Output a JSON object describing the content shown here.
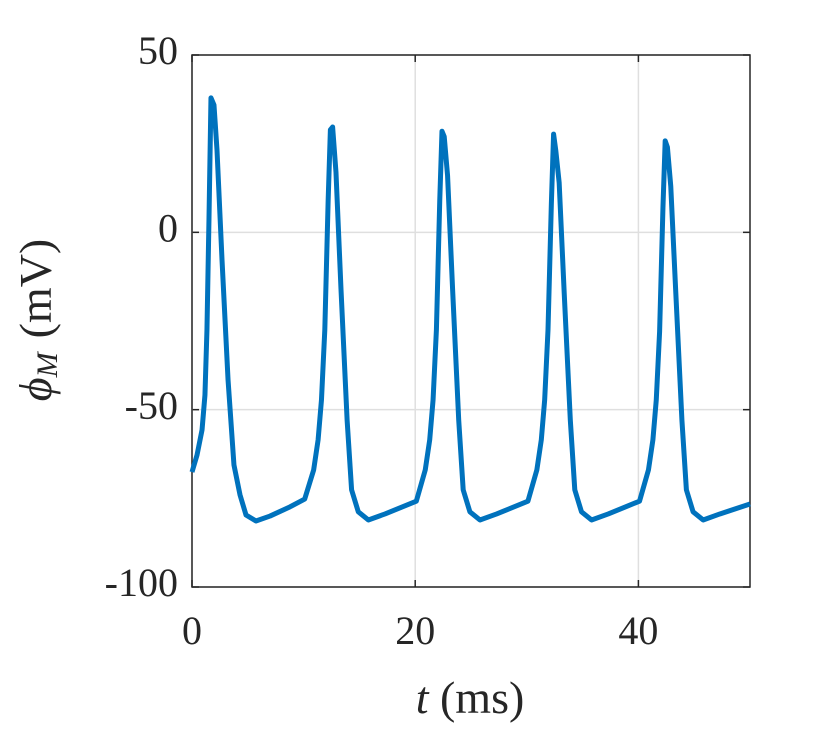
{
  "chart_data": {
    "type": "line",
    "xlabel": {
      "symbol": "t",
      "unit": "(ms)"
    },
    "ylabel": {
      "symbol": "ϕ",
      "subscript": "M",
      "unit": "(mV)"
    },
    "xlim": [
      0,
      50
    ],
    "xticks": [
      0,
      20,
      40
    ],
    "ylim": [
      -100,
      50
    ],
    "yticks": [
      -100,
      -50,
      0,
      50
    ],
    "grid": true,
    "series": [
      {
        "color": "#0072bd",
        "x": [
          0,
          0.45,
          0.9,
          1.16,
          1.34,
          1.52,
          1.7,
          1.97,
          2.24,
          2.69,
          3.23,
          3.76,
          4.3,
          4.84,
          5.73,
          6.99,
          8.78,
          10.1,
          10.9,
          11.3,
          11.6,
          11.9,
          12.2,
          12.4,
          12.6,
          12.9,
          13.35,
          13.9,
          14.3,
          14.9,
          15.8,
          17.3,
          20.1,
          20.9,
          21.3,
          21.6,
          21.9,
          22.2,
          22.4,
          22.6,
          22.9,
          23.35,
          23.9,
          24.3,
          24.9,
          25.8,
          27.3,
          30.1,
          30.9,
          31.3,
          31.6,
          31.9,
          32.2,
          32.4,
          32.6,
          32.9,
          33.35,
          33.9,
          34.3,
          34.9,
          35.8,
          37.3,
          40.1,
          40.9,
          41.3,
          41.6,
          41.9,
          42.2,
          42.4,
          42.6,
          42.9,
          43.35,
          43.9,
          44.3,
          44.9,
          45.8,
          47.3,
          50
        ],
        "values": [
          -67.6,
          -62.8,
          -55.7,
          -45.9,
          -27.5,
          3.5,
          37.9,
          35.9,
          23.2,
          -7.8,
          -41.6,
          -65.6,
          -74,
          -79.7,
          -81.4,
          -80,
          -77.4,
          -75.2,
          -67,
          -58.5,
          -47.3,
          -27.5,
          9,
          28.9,
          29.7,
          17,
          -16,
          -53,
          -72.6,
          -78.8,
          -81.1,
          -79.4,
          -75.8,
          -67,
          -58.5,
          -47.3,
          -27.5,
          9,
          28.5,
          27,
          16,
          -16,
          -53,
          -72.6,
          -78.8,
          -81.1,
          -79.4,
          -75.8,
          -67,
          -58.5,
          -47.3,
          -27.5,
          8,
          27.7,
          23,
          14,
          -17,
          -53,
          -72.6,
          -78.8,
          -81.1,
          -79.4,
          -75.8,
          -67,
          -58.5,
          -47.3,
          -28,
          7,
          25.8,
          24,
          13,
          -17,
          -53,
          -72.6,
          -78.8,
          -81.1,
          -79.4,
          -76.6
        ]
      }
    ]
  }
}
